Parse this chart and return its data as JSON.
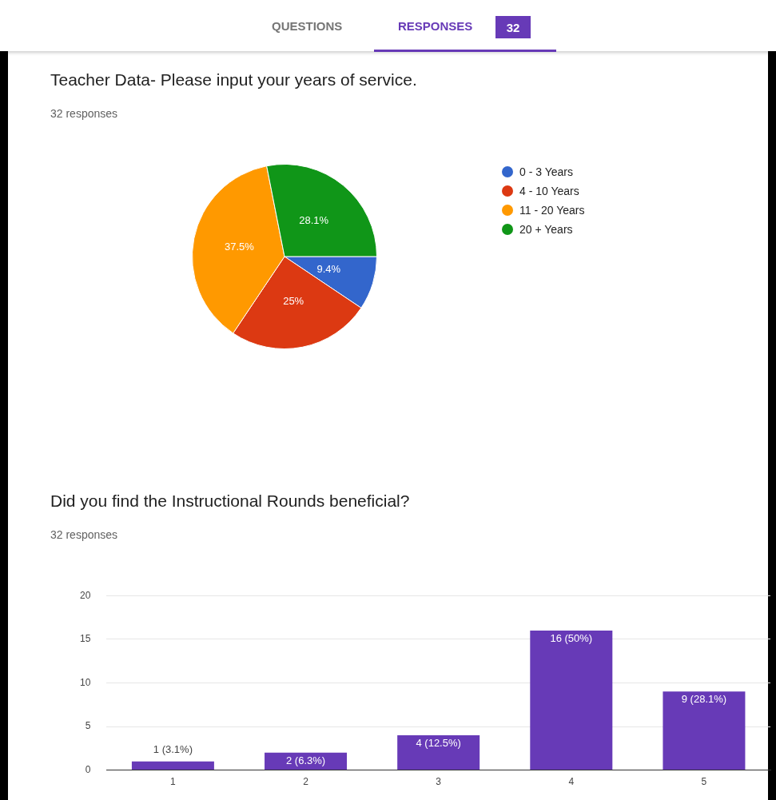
{
  "chart_data": [
    {
      "type": "other",
      "annotations": [
        "QUESTIONS",
        "RESPONSES",
        "32"
      ]
    },
    {
      "type": "pie",
      "title": "Teacher Data- Please input your years of service.",
      "subtitle": "32 responses",
      "categories": [
        "0 - 3 Years",
        "4 - 10 Years",
        "11 - 20 Years",
        "20 + Years"
      ],
      "values": [
        9.4,
        25,
        37.5,
        28.1
      ],
      "colors": [
        "#3366cc",
        "#dc3912",
        "#ff9900",
        "#109618"
      ],
      "value_labels": [
        "9.4%",
        "25%",
        "37.5%",
        "28.1%"
      ],
      "legend": "right"
    },
    {
      "type": "bar",
      "title": "Did you find the Instructional Rounds beneficial?",
      "subtitle": "32 responses",
      "categories": [
        "1",
        "2",
        "3",
        "4",
        "5"
      ],
      "values": [
        1,
        2,
        4,
        16,
        9
      ],
      "color": "#673ab7",
      "value_labels": [
        "1 (3.1%)",
        "2 (6.3%)",
        "4 (12.5%)",
        "16 (50%)",
        "9 (28.1%)"
      ],
      "ylim": [
        0,
        20
      ],
      "yticks": [
        0,
        5,
        10,
        15,
        20
      ],
      "grid": "y",
      "legend": false
    }
  ]
}
